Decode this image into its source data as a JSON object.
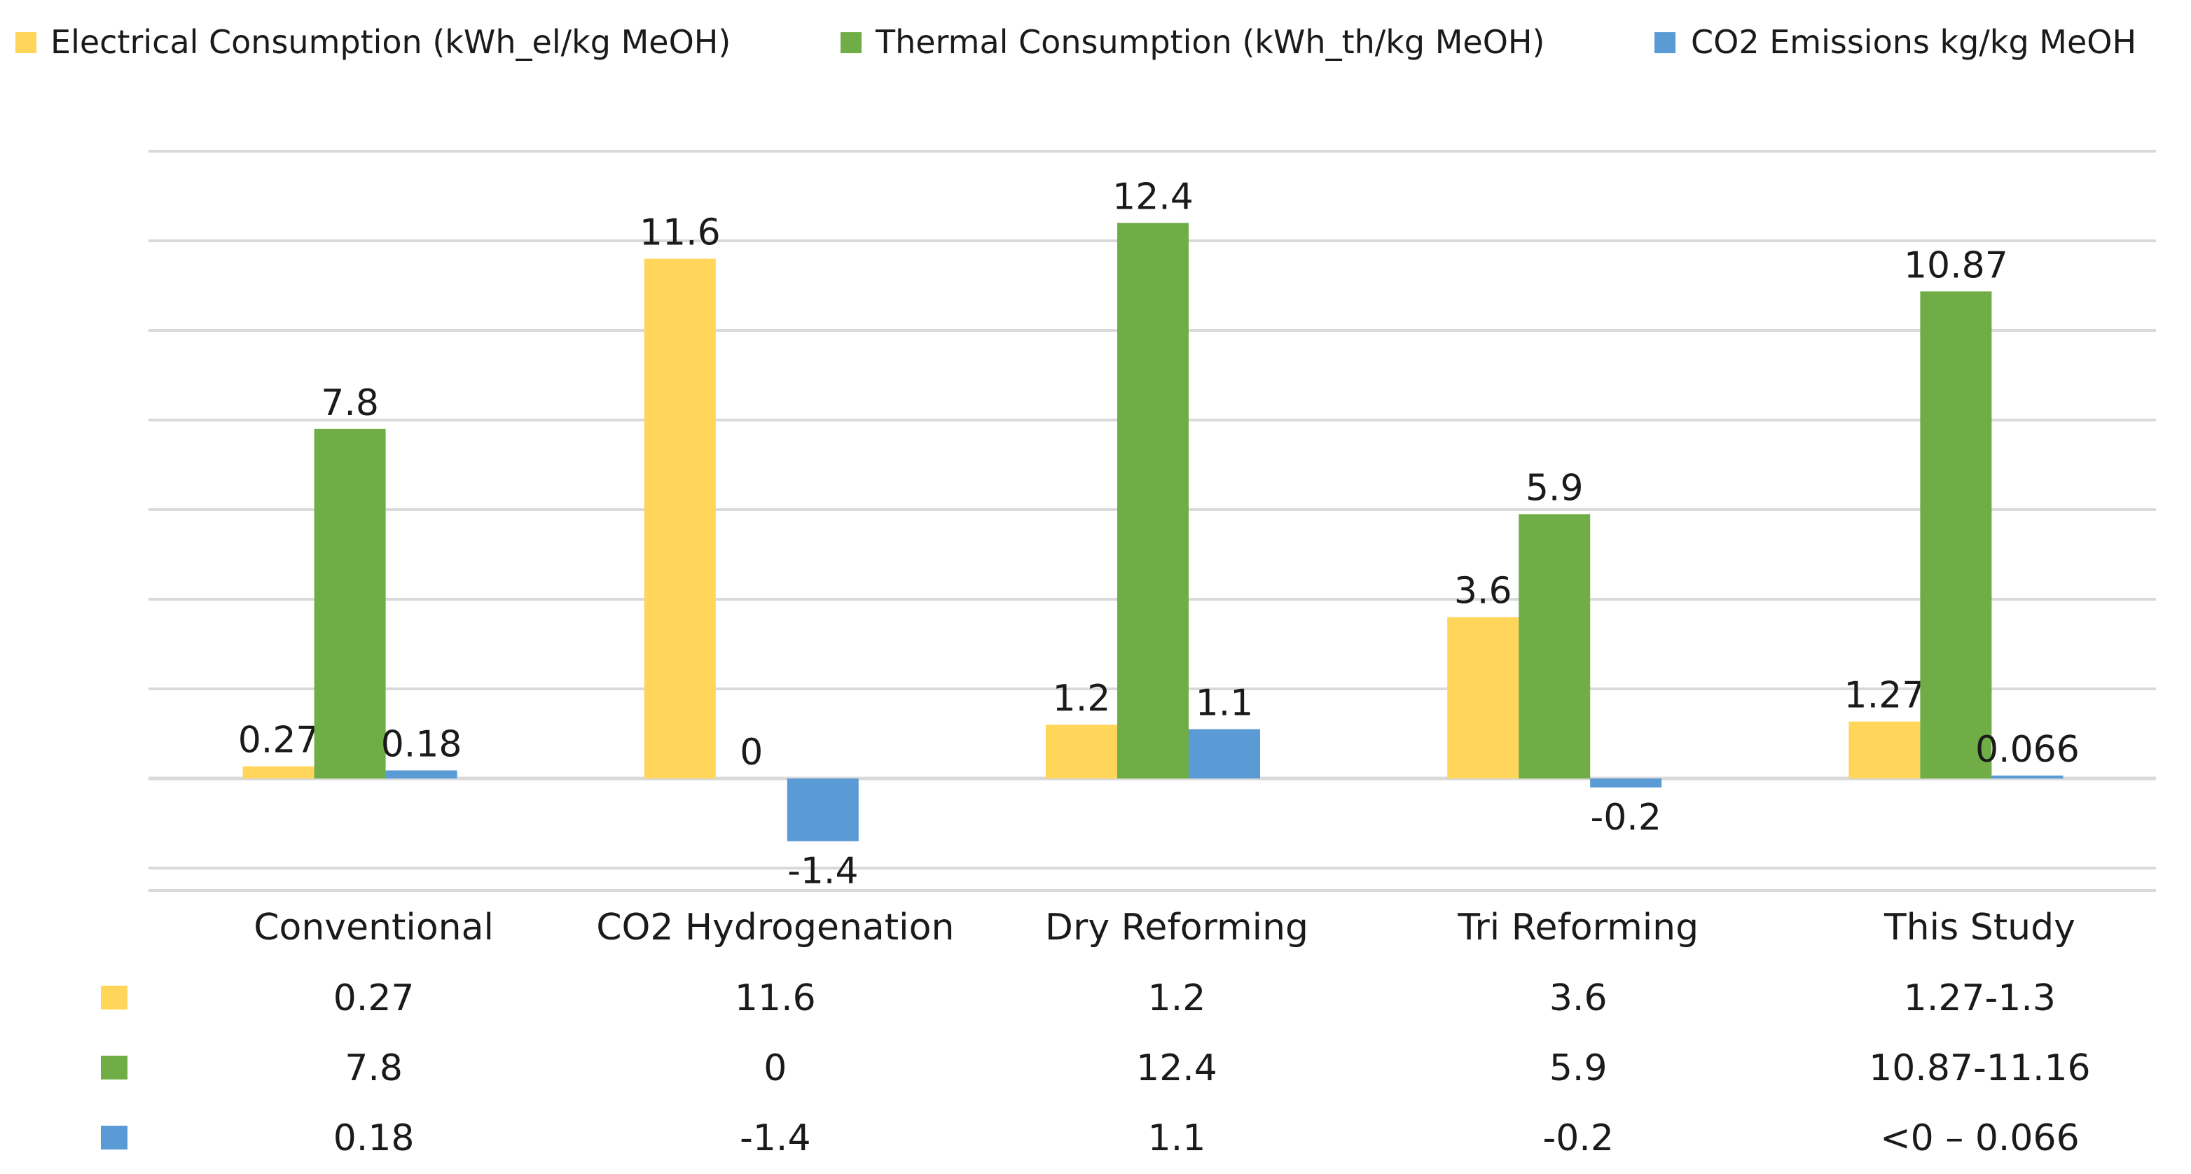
{
  "chart_data": {
    "type": "bar",
    "title": "",
    "xlabel": "",
    "ylabel": "",
    "ylim": [
      -3,
      14
    ],
    "grid": true,
    "legend_position": "top",
    "categories": [
      "Conventional",
      "CO2 Hydrogenation",
      "Dry Reforming",
      "Tri Reforming",
      "This Study"
    ],
    "series": [
      {
        "name": "Electrical Consumption (kWh_el/kg MeOH)",
        "color": "#FFD55A",
        "values": [
          0.27,
          11.6,
          1.2,
          3.6,
          1.27
        ],
        "labels": [
          "0.27",
          "11.6",
          "1.2",
          "3.6",
          "1.27"
        ]
      },
      {
        "name": "Thermal Consumption (kWh_th/kg MeOH)",
        "color": "#70AD47",
        "values": [
          7.8,
          0,
          12.4,
          5.9,
          10.87
        ],
        "labels": [
          "7.8",
          "0",
          "12.4",
          "5.9",
          "10.87"
        ]
      },
      {
        "name": "CO2 Emissions kg/kg MeOH",
        "color": "#5B9BD5",
        "values": [
          0.18,
          -1.4,
          1.1,
          -0.2,
          0.066
        ],
        "labels": [
          "0.18",
          "-1.4",
          "1.1",
          "-0.2",
          "0.066"
        ]
      }
    ],
    "table": [
      [
        "0.27",
        "11.6",
        "1.2",
        "3.6",
        "1.27-1.3"
      ],
      [
        "7.8",
        "0",
        "12.4",
        "5.9",
        "10.87-11.16"
      ],
      [
        "0.18",
        "-1.4",
        "1.1",
        "-0.2",
        "<0 – 0.066"
      ]
    ]
  }
}
